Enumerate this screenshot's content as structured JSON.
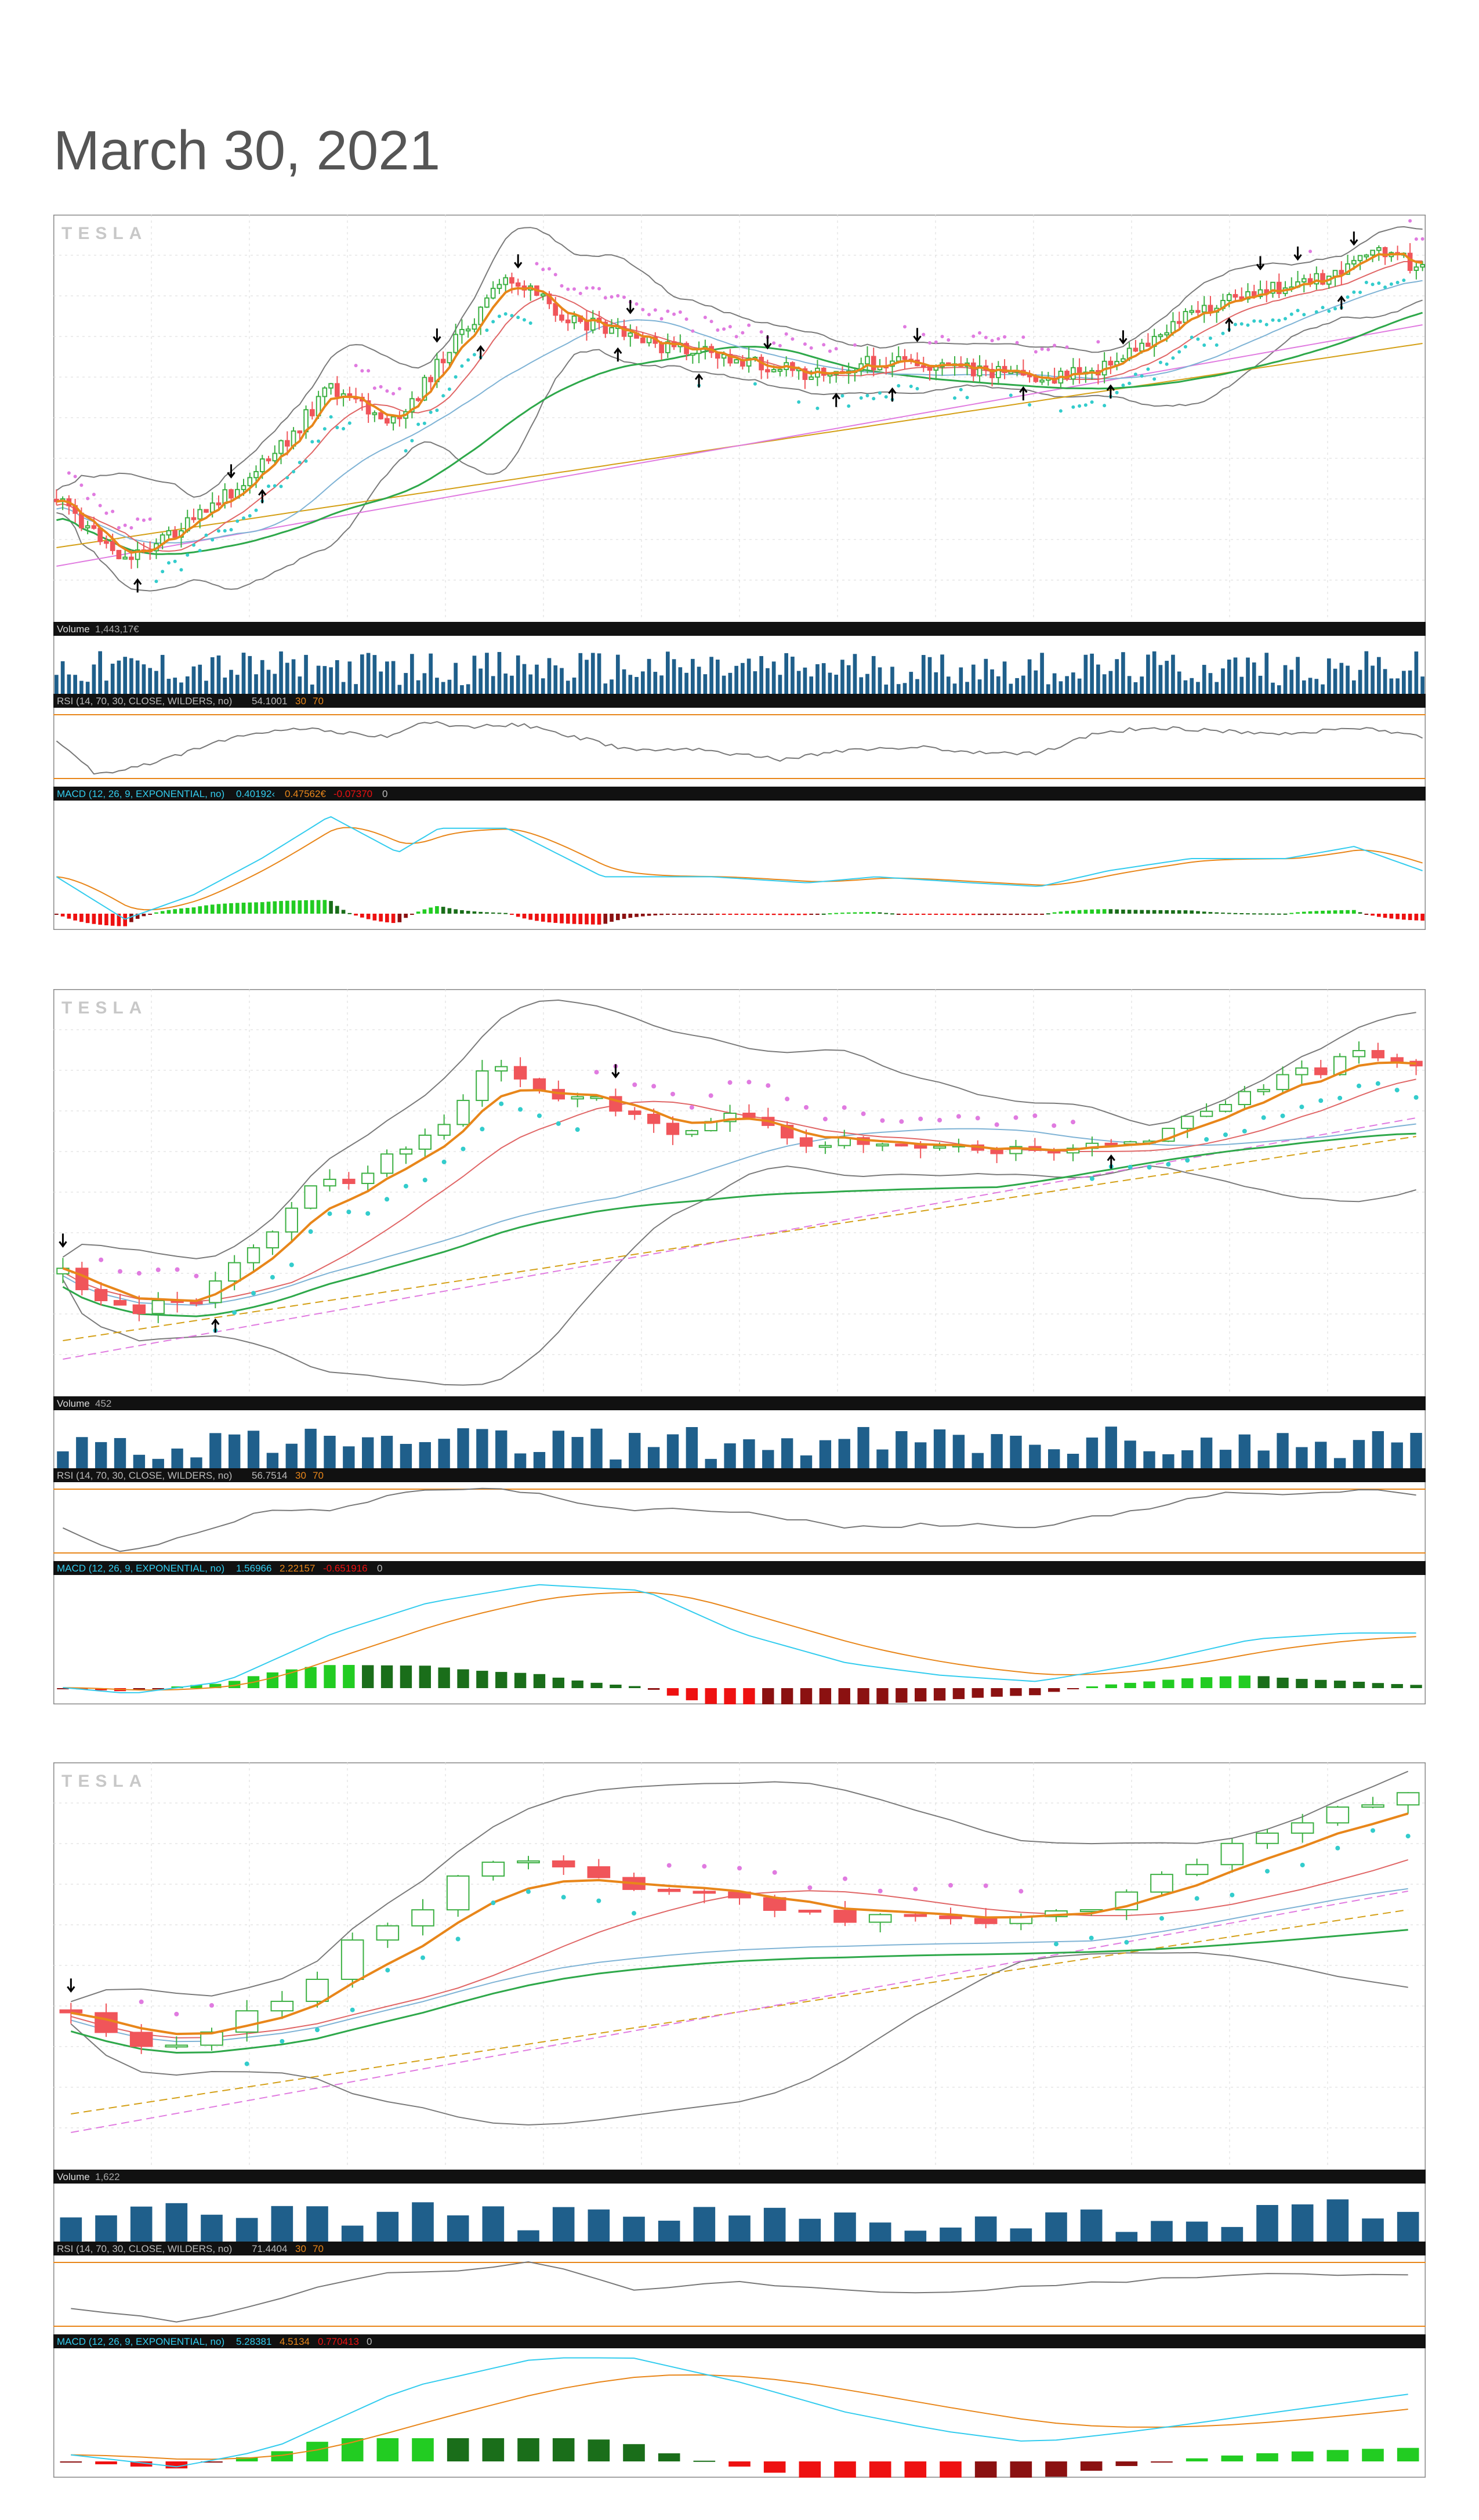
{
  "page": {
    "title": "March 30, 2021"
  },
  "colors": {
    "up": "#3cb043",
    "down": "#f0555a",
    "volume": "#1f5f8b",
    "ema_fast": "#e8861a",
    "sma_mid": "#e06666",
    "sma_long": "#7fb3d5",
    "sma_200": "#2ea84a",
    "bb": "#7a7a7a",
    "psar": "#33cccc",
    "ma_gold": "#d4a017",
    "ma_pink": "#e07be0",
    "macd": "#33ccee",
    "signal": "#e8861a",
    "hist_up": "#22cc22",
    "hist_up_dark": "#1a6e1a",
    "hist_down": "#ee1111",
    "hist_down_dark": "#8b1111",
    "rsi_line": "#777777",
    "rsi_bounds": "#e8861a",
    "bar_bg": "#111111"
  },
  "chart_data": [
    {
      "type": "candlestick",
      "watermark": "TESLA",
      "volume_label": "Volume",
      "volume_value": "1,443,17€",
      "rsi_label": "RSI (14, 70, 30, CLOSE, WILDERS, no)",
      "rsi_value": "54.1001",
      "rsi_upper": "30",
      "rsi_lower": "70",
      "macd_label": "MACD (12, 26, 9, EXPONENTIAL, no)",
      "macd_value": "0.40192‹",
      "macd_avg": "0.47562€",
      "macd_diff": "-0.07370",
      "macd_zero": "0",
      "bars": 220,
      "seed": 11,
      "price_path": [
        [
          0,
          0.72
        ],
        [
          0.05,
          0.88
        ],
        [
          0.1,
          0.78
        ],
        [
          0.16,
          0.6
        ],
        [
          0.2,
          0.42
        ],
        [
          0.25,
          0.52
        ],
        [
          0.28,
          0.35
        ],
        [
          0.33,
          0.12
        ],
        [
          0.37,
          0.22
        ],
        [
          0.43,
          0.3
        ],
        [
          0.48,
          0.33
        ],
        [
          0.55,
          0.38
        ],
        [
          0.6,
          0.35
        ],
        [
          0.67,
          0.37
        ],
        [
          0.72,
          0.4
        ],
        [
          0.77,
          0.36
        ],
        [
          0.83,
          0.22
        ],
        [
          0.88,
          0.16
        ],
        [
          0.93,
          0.12
        ],
        [
          0.97,
          0.05
        ],
        [
          1,
          0.1
        ]
      ],
      "rsi_path": [
        [
          0,
          0.4
        ],
        [
          0.03,
          0.95
        ],
        [
          0.08,
          0.7
        ],
        [
          0.12,
          0.4
        ],
        [
          0.18,
          0.2
        ],
        [
          0.24,
          0.35
        ],
        [
          0.27,
          0.1
        ],
        [
          0.3,
          0.2
        ],
        [
          0.34,
          0.15
        ],
        [
          0.38,
          0.35
        ],
        [
          0.42,
          0.55
        ],
        [
          0.47,
          0.55
        ],
        [
          0.53,
          0.7
        ],
        [
          0.58,
          0.55
        ],
        [
          0.63,
          0.5
        ],
        [
          0.67,
          0.6
        ],
        [
          0.72,
          0.6
        ],
        [
          0.76,
          0.3
        ],
        [
          0.8,
          0.2
        ],
        [
          0.85,
          0.25
        ],
        [
          0.9,
          0.3
        ],
        [
          0.95,
          0.2
        ],
        [
          1,
          0.35
        ]
      ],
      "macd_path": [
        [
          0,
          0.6
        ],
        [
          0.05,
          0.95
        ],
        [
          0.1,
          0.75
        ],
        [
          0.15,
          0.45
        ],
        [
          0.2,
          0.1
        ],
        [
          0.25,
          0.4
        ],
        [
          0.28,
          0.2
        ],
        [
          0.33,
          0.2
        ],
        [
          0.4,
          0.6
        ],
        [
          0.48,
          0.6
        ],
        [
          0.55,
          0.65
        ],
        [
          0.6,
          0.6
        ],
        [
          0.67,
          0.65
        ],
        [
          0.72,
          0.68
        ],
        [
          0.77,
          0.55
        ],
        [
          0.83,
          0.45
        ],
        [
          0.9,
          0.45
        ],
        [
          0.95,
          0.35
        ],
        [
          1,
          0.55
        ]
      ],
      "markers_up": [
        0.06,
        0.15,
        0.31,
        0.41,
        0.47,
        0.57,
        0.61,
        0.71,
        0.77,
        0.86,
        0.94
      ],
      "markers_down": [
        0.13,
        0.28,
        0.34,
        0.42,
        0.52,
        0.63,
        0.78,
        0.88,
        0.91,
        0.95
      ]
    },
    {
      "type": "candlestick",
      "watermark": "TESLA",
      "volume_label": "Volume",
      "volume_value": "452",
      "rsi_label": "RSI (14, 70, 30, CLOSE, WILDERS, no)",
      "rsi_value": "56.7514",
      "rsi_upper": "30",
      "rsi_lower": "70",
      "macd_label": "MACD (12, 26, 9, EXPONENTIAL, no)",
      "macd_value": "1.56966",
      "macd_avg": "2.22157",
      "macd_diff": "-0.651916",
      "macd_zero": "0",
      "bars": 72,
      "seed": 23,
      "price_path": [
        [
          0,
          0.72
        ],
        [
          0.04,
          0.82
        ],
        [
          0.09,
          0.8
        ],
        [
          0.13,
          0.7
        ],
        [
          0.18,
          0.5
        ],
        [
          0.22,
          0.45
        ],
        [
          0.27,
          0.35
        ],
        [
          0.32,
          0.15
        ],
        [
          0.36,
          0.25
        ],
        [
          0.4,
          0.25
        ],
        [
          0.44,
          0.33
        ],
        [
          0.5,
          0.3
        ],
        [
          0.55,
          0.38
        ],
        [
          0.6,
          0.35
        ],
        [
          0.66,
          0.38
        ],
        [
          0.72,
          0.4
        ],
        [
          0.8,
          0.37
        ],
        [
          0.86,
          0.25
        ],
        [
          0.92,
          0.18
        ],
        [
          0.96,
          0.12
        ],
        [
          1,
          0.15
        ]
      ],
      "rsi_path": [
        [
          0,
          0.6
        ],
        [
          0.04,
          1
        ],
        [
          0.1,
          0.7
        ],
        [
          0.15,
          0.3
        ],
        [
          0.2,
          0.35
        ],
        [
          0.25,
          0.05
        ],
        [
          0.33,
          0.0
        ],
        [
          0.4,
          0.3
        ],
        [
          0.5,
          0.35
        ],
        [
          0.58,
          0.6
        ],
        [
          0.65,
          0.55
        ],
        [
          0.72,
          0.6
        ],
        [
          0.8,
          0.3
        ],
        [
          0.86,
          0.05
        ],
        [
          0.92,
          0.1
        ],
        [
          0.97,
          0.0
        ],
        [
          1,
          0.1
        ]
      ],
      "macd_path": [
        [
          0,
          0.9
        ],
        [
          0.05,
          0.95
        ],
        [
          0.12,
          0.85
        ],
        [
          0.2,
          0.45
        ],
        [
          0.27,
          0.2
        ],
        [
          0.35,
          0.05
        ],
        [
          0.43,
          0.1
        ],
        [
          0.5,
          0.45
        ],
        [
          0.58,
          0.7
        ],
        [
          0.65,
          0.8
        ],
        [
          0.72,
          0.85
        ],
        [
          0.8,
          0.7
        ],
        [
          0.88,
          0.5
        ],
        [
          0.95,
          0.45
        ],
        [
          1,
          0.45
        ]
      ],
      "markers_up": [
        0.11
      ],
      "markers_down": [
        0.0,
        0.41
      ],
      "markers_up2": [
        0.77
      ]
    },
    {
      "type": "candlestick",
      "watermark": "TESLA",
      "volume_label": "Volume",
      "volume_value": "1,622",
      "rsi_label": "RSI (14, 70, 30, CLOSE, WILDERS, no)",
      "rsi_value": "71.4404",
      "rsi_upper": "30",
      "rsi_lower": "70",
      "macd_label": "MACD (12, 26, 9, EXPONENTIAL, no)",
      "macd_value": "5.28381",
      "macd_avg": "4.5134",
      "macd_diff": "0.770413",
      "macd_zero": "0",
      "bars": 39,
      "seed": 37,
      "price_path": [
        [
          0,
          0.62
        ],
        [
          0.04,
          0.7
        ],
        [
          0.08,
          0.7
        ],
        [
          0.13,
          0.63
        ],
        [
          0.18,
          0.55
        ],
        [
          0.22,
          0.42
        ],
        [
          0.27,
          0.32
        ],
        [
          0.32,
          0.2
        ],
        [
          0.36,
          0.25
        ],
        [
          0.42,
          0.28
        ],
        [
          0.5,
          0.3
        ],
        [
          0.56,
          0.38
        ],
        [
          0.62,
          0.36
        ],
        [
          0.68,
          0.38
        ],
        [
          0.74,
          0.35
        ],
        [
          0.8,
          0.3
        ],
        [
          0.86,
          0.2
        ],
        [
          0.92,
          0.12
        ],
        [
          0.96,
          0.08
        ],
        [
          1,
          0.05
        ]
      ],
      "rsi_path": [
        [
          0,
          0.7
        ],
        [
          0.08,
          0.95
        ],
        [
          0.15,
          0.6
        ],
        [
          0.22,
          0.2
        ],
        [
          0.3,
          0.1
        ],
        [
          0.35,
          0.0
        ],
        [
          0.42,
          0.45
        ],
        [
          0.5,
          0.3
        ],
        [
          0.58,
          0.45
        ],
        [
          0.66,
          0.45
        ],
        [
          0.74,
          0.35
        ],
        [
          0.82,
          0.25
        ],
        [
          0.9,
          0.2
        ],
        [
          1,
          0.2
        ]
      ],
      "macd_path": [
        [
          0,
          0.85
        ],
        [
          0.08,
          0.95
        ],
        [
          0.15,
          0.8
        ],
        [
          0.25,
          0.3
        ],
        [
          0.35,
          0.05
        ],
        [
          0.42,
          0.05
        ],
        [
          0.5,
          0.25
        ],
        [
          0.58,
          0.5
        ],
        [
          0.65,
          0.65
        ],
        [
          0.72,
          0.75
        ],
        [
          0.8,
          0.65
        ],
        [
          0.9,
          0.5
        ],
        [
          1,
          0.35
        ]
      ],
      "markers_up": [],
      "markers_down": [
        0.01
      ]
    }
  ]
}
